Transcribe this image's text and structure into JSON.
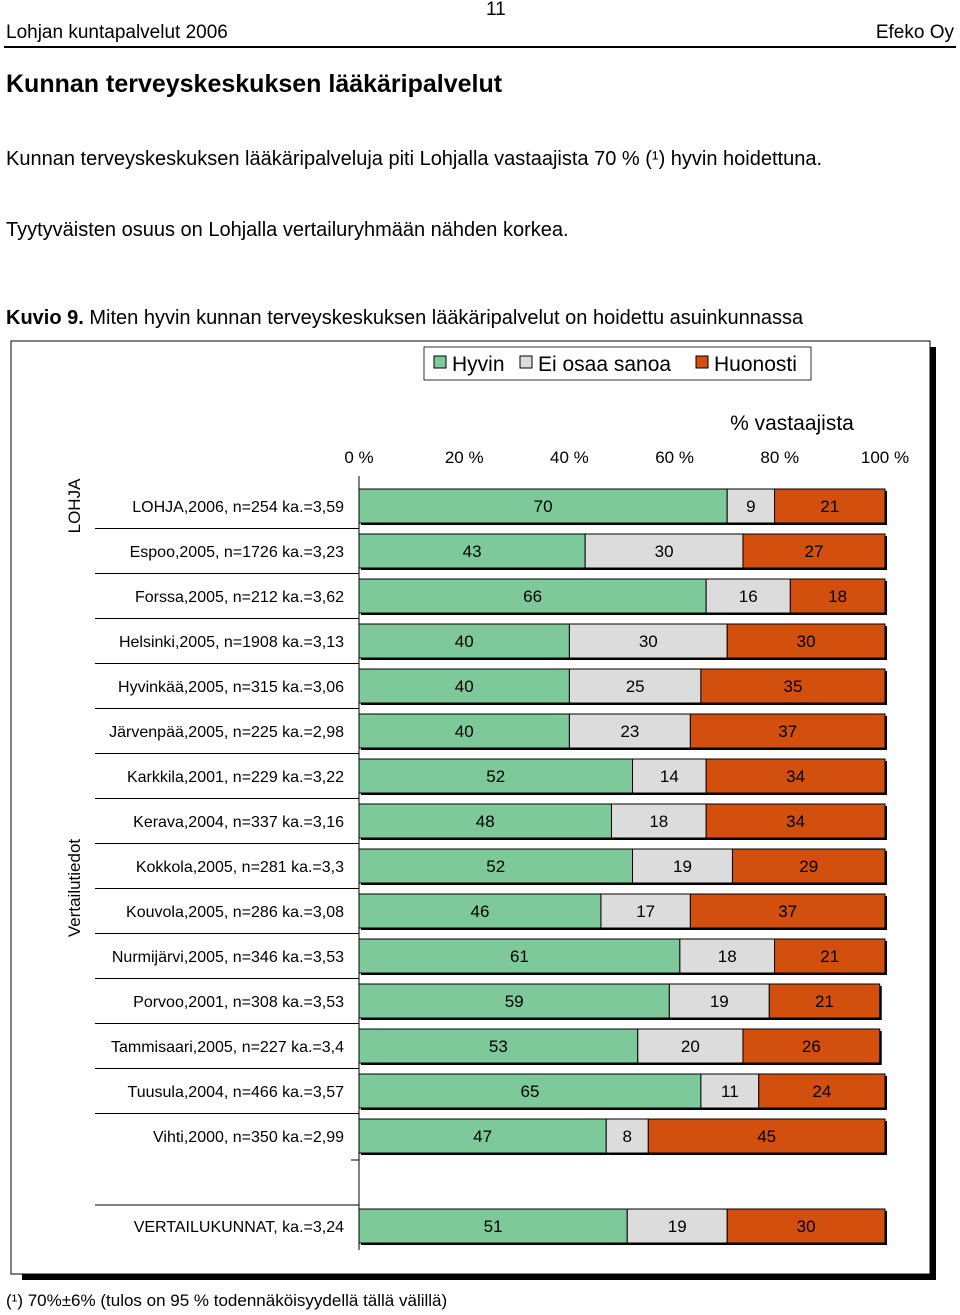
{
  "header": {
    "left": "Lohjan kuntapalvelut 2006",
    "page_number": "11",
    "right": "Efeko Oy"
  },
  "heading": "Kunnan terveyskeskuksen lääkäripalvelut",
  "paragraphs": [
    "Kunnan terveyskeskuksen lääkäripalveluja piti Lohjalla vastaajista 70 % (¹) hyvin hoidettuna.",
    "Tyytyväisten osuus on Lohjalla vertailuryhmään nähden korkea."
  ],
  "caption": {
    "label": "Kuvio 9.",
    "text": " Miten hyvin kunnan terveyskeskuksen lääkäripalvelut on hoidettu asuinkunnassa"
  },
  "footnote": "(¹) 70%±6% (tulos on 95 % todennäköisyydellä tällä välillä)",
  "colors": {
    "hyvin": "#7dc99a",
    "ei_osaa_sanoa": "#dcdcdc",
    "huonosti": "#d24f0d"
  },
  "chart_data": {
    "type": "bar",
    "orientation": "horizontal",
    "stacked": "100%",
    "xlabel": "% vastaajista",
    "xlim": [
      0,
      100
    ],
    "x_ticks": [
      "0 %",
      "20 %",
      "40 %",
      "60 %",
      "80 %",
      "100 %"
    ],
    "legend": [
      "Hyvin",
      "Ei osaa sanoa",
      "Huonosti"
    ],
    "legend_position": "top-right",
    "group_labels": {
      "lohja": "LOHJA",
      "comparison": "Vertailutiedot"
    },
    "categories": [
      "LOHJA,2006, n=254 ka.=3,59",
      "Espoo,2005, n=1726 ka.=3,23",
      "Forssa,2005, n=212 ka.=3,62",
      "Helsinki,2005, n=1908 ka.=3,13",
      "Hyvinkää,2005, n=315 ka.=3,06",
      "Järvenpää,2005, n=225 ka.=2,98",
      "Karkkila,2001, n=229 ka.=3,22",
      "Kerava,2004, n=337 ka.=3,16",
      "Kokkola,2005, n=281 ka.=3,3",
      "Kouvola,2005, n=286 ka.=3,08",
      "Nurmijärvi,2005, n=346 ka.=3,53",
      "Porvoo,2001, n=308 ka.=3,53",
      "Tammisaari,2005, n=227 ka.=3,4",
      "Tuusula,2004, n=466 ka.=3,57",
      "Vihti,2000, n=350 ka.=2,99",
      "VERTAILUKUNNAT, ka.=3,24"
    ],
    "series": [
      {
        "name": "Hyvin",
        "values": [
          70,
          43,
          66,
          40,
          40,
          40,
          52,
          48,
          52,
          46,
          61,
          59,
          53,
          65,
          47,
          51
        ]
      },
      {
        "name": "Ei osaa sanoa",
        "values": [
          9,
          30,
          16,
          30,
          25,
          23,
          14,
          18,
          19,
          17,
          18,
          19,
          20,
          11,
          8,
          19
        ]
      },
      {
        "name": "Huonosti",
        "values": [
          21,
          27,
          18,
          30,
          35,
          37,
          34,
          34,
          29,
          37,
          21,
          21,
          26,
          24,
          45,
          30
        ]
      }
    ]
  }
}
